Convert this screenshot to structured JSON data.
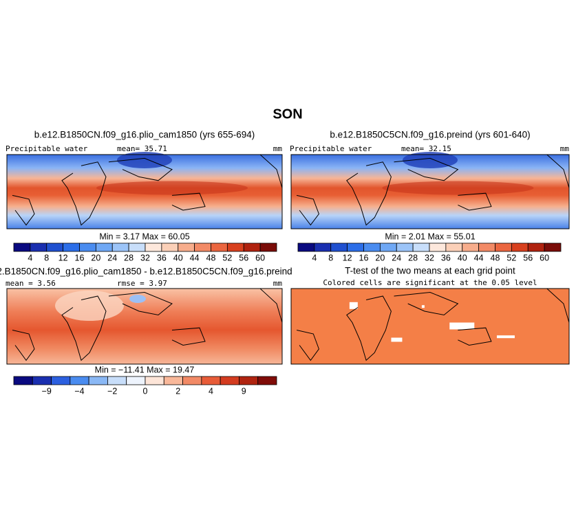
{
  "title": "SON",
  "panels": [
    {
      "title": "b.e12.B1850CN.f09_g16.plio_cam1850 (yrs 655-694)",
      "left_label": "Precipitable water",
      "center_label": "mean=  35.71",
      "right_label": "mm",
      "stats": "Min =    3.17  Max =   60.05",
      "colorbar": {
        "labels": [
          "4",
          "8",
          "12",
          "16",
          "20",
          "24",
          "28",
          "32",
          "36",
          "40",
          "44",
          "48",
          "52",
          "56",
          "60"
        ],
        "colors": [
          "#0a0a80",
          "#1a2fb0",
          "#2050d0",
          "#2c6ee8",
          "#4a8cf0",
          "#6fa8f5",
          "#9cc4f8",
          "#c8defa",
          "#fde8dc",
          "#fbd0b8",
          "#f7ad8c",
          "#f28a66",
          "#eb6640",
          "#d8401e",
          "#b0220f",
          "#7a0c08"
        ]
      }
    },
    {
      "title": "b.e12.B1850C5CN.f09_g16.preind (yrs 601-640)",
      "left_label": "Precipitable water",
      "center_label": "mean=  32.15",
      "right_label": "mm",
      "stats": "Min =    2.01  Max =   55.01",
      "colorbar": {
        "labels": [
          "4",
          "8",
          "12",
          "16",
          "20",
          "24",
          "28",
          "32",
          "36",
          "40",
          "44",
          "48",
          "52",
          "56",
          "60"
        ],
        "colors": [
          "#0a0a80",
          "#1a2fb0",
          "#2050d0",
          "#2c6ee8",
          "#4a8cf0",
          "#6fa8f5",
          "#9cc4f8",
          "#c8defa",
          "#fde8dc",
          "#fbd0b8",
          "#f7ad8c",
          "#f28a66",
          "#eb6640",
          "#d8401e",
          "#b0220f",
          "#7a0c08"
        ]
      }
    },
    {
      "title": "2.B1850CN.f09_g16.plio_cam1850 - b.e12.B1850C5CN.f09_g16.preind",
      "left_label": "mean =  3.56",
      "center_label": "rmse =   3.97",
      "right_label": "mm",
      "stats": "Min = −11.41  Max =  19.47",
      "colorbar": {
        "labels": [
          "−9",
          "−4",
          "−2",
          "0",
          "2",
          "4",
          "9"
        ],
        "colors": [
          "#0a0a80",
          "#1a2fb0",
          "#2c60e0",
          "#4a8cf0",
          "#8ab8f5",
          "#c8defa",
          "#eef4fd",
          "#fde5d8",
          "#f9b89a",
          "#f28a66",
          "#e85c38",
          "#d43c20",
          "#b02410",
          "#800c08"
        ]
      }
    },
    {
      "title": "T-test of the two means at each grid point",
      "subtitle": "Colored cells are significant at the 0.05 level"
    }
  ]
}
